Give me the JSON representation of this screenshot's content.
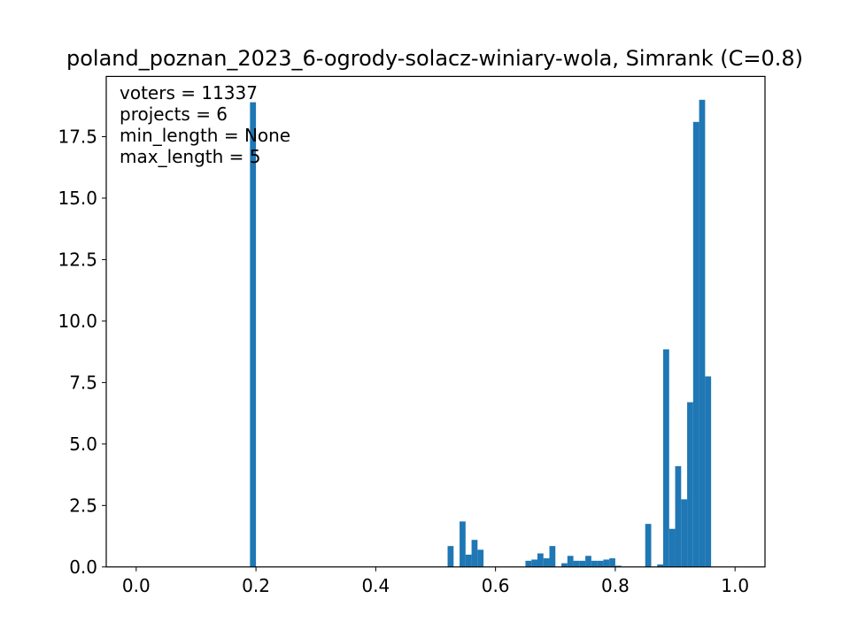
{
  "chart_data": {
    "type": "bar",
    "title": "poland_poznan_2023_6-ogrody-solacz-winiary-wola, Simrank (C=0.8)",
    "xlabel": "",
    "ylabel": "",
    "xlim": [
      -0.05,
      1.05
    ],
    "ylim": [
      0,
      19.95
    ],
    "bin_width": 0.01,
    "color": "#1f77b4",
    "x_ticks": [
      0.0,
      0.2,
      0.4,
      0.6,
      0.8,
      1.0
    ],
    "x_tick_labels": [
      "0.0",
      "0.2",
      "0.4",
      "0.6",
      "0.8",
      "1.0"
    ],
    "y_ticks": [
      0,
      2.5,
      5,
      7.5,
      10,
      12.5,
      15,
      17.5
    ],
    "y_tick_labels": [
      "0.0",
      "2.5",
      "5.0",
      "7.5",
      "10.0",
      "12.5",
      "15.0",
      "17.5"
    ],
    "annotations": [
      "voters = 11337",
      "projects = 6",
      "min_length = None",
      "max_length = 5"
    ],
    "bins": [
      {
        "x0": 0.19,
        "x1": 0.2,
        "value": 18.9
      },
      {
        "x0": 0.52,
        "x1": 0.53,
        "value": 0.85
      },
      {
        "x0": 0.54,
        "x1": 0.55,
        "value": 1.85
      },
      {
        "x0": 0.55,
        "x1": 0.56,
        "value": 0.5
      },
      {
        "x0": 0.56,
        "x1": 0.57,
        "value": 1.1
      },
      {
        "x0": 0.57,
        "x1": 0.58,
        "value": 0.7
      },
      {
        "x0": 0.65,
        "x1": 0.66,
        "value": 0.25
      },
      {
        "x0": 0.66,
        "x1": 0.67,
        "value": 0.3
      },
      {
        "x0": 0.67,
        "x1": 0.68,
        "value": 0.55
      },
      {
        "x0": 0.68,
        "x1": 0.69,
        "value": 0.35
      },
      {
        "x0": 0.69,
        "x1": 0.7,
        "value": 0.85
      },
      {
        "x0": 0.71,
        "x1": 0.72,
        "value": 0.15
      },
      {
        "x0": 0.72,
        "x1": 0.73,
        "value": 0.45
      },
      {
        "x0": 0.73,
        "x1": 0.74,
        "value": 0.25
      },
      {
        "x0": 0.74,
        "x1": 0.75,
        "value": 0.25
      },
      {
        "x0": 0.75,
        "x1": 0.76,
        "value": 0.45
      },
      {
        "x0": 0.76,
        "x1": 0.77,
        "value": 0.25
      },
      {
        "x0": 0.77,
        "x1": 0.78,
        "value": 0.25
      },
      {
        "x0": 0.78,
        "x1": 0.79,
        "value": 0.3
      },
      {
        "x0": 0.79,
        "x1": 0.8,
        "value": 0.35
      },
      {
        "x0": 0.8,
        "x1": 0.81,
        "value": 0.05
      },
      {
        "x0": 0.85,
        "x1": 0.86,
        "value": 1.75
      },
      {
        "x0": 0.87,
        "x1": 0.88,
        "value": 0.1
      },
      {
        "x0": 0.88,
        "x1": 0.89,
        "value": 8.85
      },
      {
        "x0": 0.89,
        "x1": 0.9,
        "value": 1.55
      },
      {
        "x0": 0.9,
        "x1": 0.91,
        "value": 4.1
      },
      {
        "x0": 0.91,
        "x1": 0.92,
        "value": 2.75
      },
      {
        "x0": 0.92,
        "x1": 0.93,
        "value": 6.7
      },
      {
        "x0": 0.93,
        "x1": 0.94,
        "value": 18.1
      },
      {
        "x0": 0.94,
        "x1": 0.95,
        "value": 19.0
      },
      {
        "x0": 0.95,
        "x1": 0.96,
        "value": 7.75
      }
    ]
  }
}
